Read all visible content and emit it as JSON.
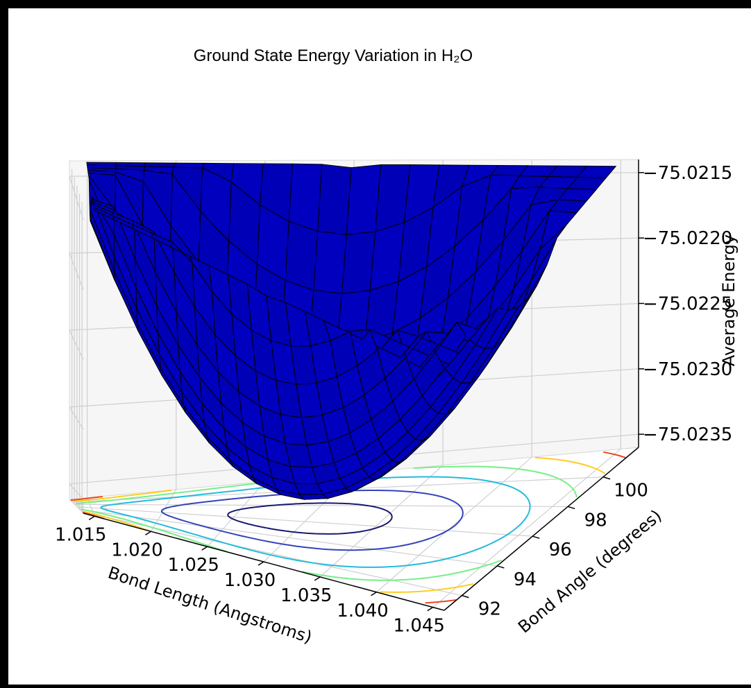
{
  "chart_data": {
    "type": "surface3d",
    "title": "Ground State Energy Variation in H₂O",
    "xlabel": "Bond Length (Angstroms)",
    "ylabel": "Bond Angle (degrees)",
    "zlabel": "Average Energy",
    "x_ticks": [
      "1.015",
      "1.020",
      "1.025",
      "1.030",
      "1.035",
      "1.040",
      "1.045"
    ],
    "y_ticks": [
      "92",
      "94",
      "96",
      "98",
      "100"
    ],
    "z_ticks": [
      "−75.0215",
      "−75.0220",
      "−75.0225",
      "−75.0230",
      "−75.0235"
    ],
    "xlim": [
      1.014,
      1.046
    ],
    "ylim": [
      91,
      102
    ],
    "zlim": [
      -75.0236,
      -75.0214
    ],
    "minimum": {
      "x": 1.03,
      "y": 96.5,
      "z": -75.02345
    },
    "surface_color": "#0000cc",
    "edge_color": "#000000",
    "contour_colors": [
      "#191970",
      "#3344bb",
      "#22bbdd",
      "#77ee88",
      "#ffcc22",
      "#ee4422"
    ],
    "grid": true
  }
}
